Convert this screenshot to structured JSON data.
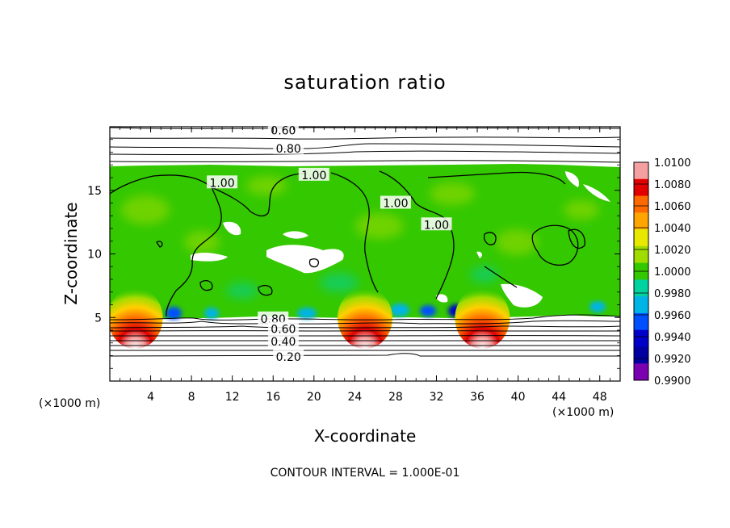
{
  "chart_data": {
    "type": "heatmap",
    "title": "saturation ratio",
    "xlabel": "X-coordinate",
    "ylabel": "Z-coordinate",
    "x_unit_label": "(×1000 m)",
    "z_unit_label": "(×1000 m)",
    "footer": "CONTOUR INTERVAL = 1.000E-01",
    "xlim": [
      0,
      50
    ],
    "ylim": [
      0,
      20
    ],
    "x_ticks": [
      "4",
      "8",
      "12",
      "16",
      "20",
      "24",
      "28",
      "32",
      "36",
      "40",
      "44",
      "48"
    ],
    "y_ticks": [
      "5",
      "10",
      "15"
    ],
    "colorbar": {
      "labels": [
        "1.0100",
        "1.0080",
        "1.0060",
        "1.0040",
        "1.0020",
        "1.0000",
        "0.9980",
        "0.9960",
        "0.9940",
        "0.9920",
        "0.9900"
      ],
      "colors": [
        "#f4a0a0",
        "#e00000",
        "#ff6a00",
        "#ffa500",
        "#e8e800",
        "#a0dc00",
        "#34c800",
        "#00d2a0",
        "#00b4e6",
        "#0050ff",
        "#0000c8",
        "#0000a0",
        "#7a00b0"
      ]
    },
    "contour_labels": [
      {
        "text": "0.60",
        "x": 17,
        "z": 19.7
      },
      {
        "text": "0.80",
        "x": 17.5,
        "z": 18.3
      },
      {
        "text": "1.00",
        "x": 11,
        "z": 15.6
      },
      {
        "text": "1.00",
        "x": 20,
        "z": 16.2
      },
      {
        "text": "1.00",
        "x": 28,
        "z": 14
      },
      {
        "text": "1.00",
        "x": 32,
        "z": 12.3
      },
      {
        "text": "0.80",
        "x": 16,
        "z": 4.9
      },
      {
        "text": "0.60",
        "x": 17,
        "z": 4.1
      },
      {
        "text": "0.40",
        "x": 17,
        "z": 3.1
      },
      {
        "text": "0.20",
        "x": 17.5,
        "z": 1.9
      }
    ],
    "supersaturated_cores_x": [
      2.5,
      25,
      36.5
    ]
  }
}
